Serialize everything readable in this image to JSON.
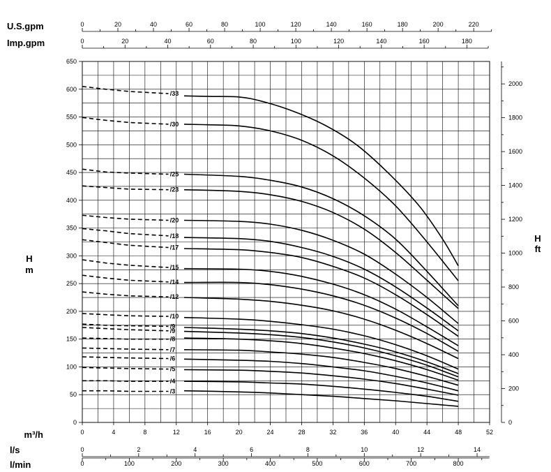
{
  "chart_data": {
    "type": "line",
    "title": "",
    "x_primary": {
      "label": "m³/h",
      "min": 0,
      "max": 52,
      "ticks": [
        0,
        4,
        8,
        12,
        16,
        20,
        24,
        28,
        32,
        36,
        40,
        44,
        48,
        52
      ]
    },
    "y_primary": {
      "label_top": "H",
      "label_bottom": "m",
      "min": 0,
      "max": 650,
      "ticks": [
        0,
        50,
        100,
        150,
        200,
        250,
        300,
        350,
        400,
        450,
        500,
        550,
        600,
        650
      ]
    },
    "y_secondary": {
      "label_top": "H",
      "label_bottom": "ft",
      "max": 2132.5,
      "ticks": [
        0,
        200,
        400,
        600,
        800,
        1000,
        1200,
        1400,
        1600,
        1800,
        2000
      ]
    },
    "secondary_x_axes": {
      "usgpm": {
        "label": "U.S.gpm",
        "per_m3h": 4.4029,
        "ticks": [
          0,
          20,
          40,
          60,
          80,
          100,
          120,
          140,
          160,
          180,
          200,
          220
        ]
      },
      "impgpm": {
        "label": "Imp.gpm",
        "per_m3h": 3.6662,
        "ticks": [
          0,
          20,
          40,
          60,
          80,
          100,
          120,
          140,
          160,
          180
        ]
      },
      "ls": {
        "label": "l/s",
        "per_m3h": 0.27778,
        "ticks": [
          0,
          2,
          4,
          6,
          8,
          10,
          12,
          14
        ]
      },
      "lmin": {
        "label": "l/min",
        "per_m3h": 16.6667,
        "ticks": [
          0,
          100,
          200,
          300,
          400,
          500,
          600,
          700,
          800
        ]
      }
    },
    "dashed_range": [
      0,
      11
    ],
    "series": [
      {
        "name": "/33",
        "dashed": [
          [
            0,
            605
          ],
          [
            3,
            600
          ],
          [
            6,
            596
          ],
          [
            11,
            592
          ]
        ],
        "solid": [
          [
            13,
            588
          ],
          [
            16,
            587
          ],
          [
            20,
            586
          ],
          [
            23,
            578
          ],
          [
            27,
            560
          ],
          [
            31,
            535
          ],
          [
            35,
            500
          ],
          [
            39,
            450
          ],
          [
            43,
            390
          ],
          [
            46,
            330
          ],
          [
            48,
            282
          ]
        ]
      },
      {
        "name": "/30",
        "dashed": [
          [
            0,
            549
          ],
          [
            3,
            544
          ],
          [
            6,
            540
          ],
          [
            11,
            537
          ]
        ],
        "solid": [
          [
            13,
            537
          ],
          [
            16,
            536
          ],
          [
            20,
            534
          ],
          [
            24,
            525
          ],
          [
            28,
            508
          ],
          [
            32,
            480
          ],
          [
            36,
            440
          ],
          [
            40,
            390
          ],
          [
            44,
            325
          ],
          [
            48,
            255
          ]
        ]
      },
      {
        "name": "/25",
        "dashed": [
          [
            0,
            456
          ],
          [
            3,
            451
          ],
          [
            6,
            449
          ],
          [
            11,
            447
          ]
        ],
        "solid": [
          [
            13,
            447
          ],
          [
            20,
            443
          ],
          [
            24,
            436
          ],
          [
            28,
            424
          ],
          [
            32,
            403
          ],
          [
            36,
            372
          ],
          [
            40,
            330
          ],
          [
            44,
            272
          ],
          [
            48,
            210
          ]
        ]
      },
      {
        "name": "/23",
        "dashed": [
          [
            0,
            426
          ],
          [
            3,
            423
          ],
          [
            6,
            420
          ],
          [
            11,
            419
          ]
        ],
        "solid": [
          [
            13,
            419
          ],
          [
            20,
            416
          ],
          [
            24,
            410
          ],
          [
            28,
            398
          ],
          [
            32,
            378
          ],
          [
            36,
            348
          ],
          [
            40,
            306
          ],
          [
            44,
            256
          ],
          [
            48,
            205
          ]
        ]
      },
      {
        "name": "/20",
        "dashed": [
          [
            0,
            373
          ],
          [
            3,
            369
          ],
          [
            6,
            366
          ],
          [
            11,
            364
          ]
        ],
        "solid": [
          [
            13,
            364
          ],
          [
            20,
            362
          ],
          [
            24,
            357
          ],
          [
            28,
            346
          ],
          [
            32,
            328
          ],
          [
            36,
            303
          ],
          [
            40,
            267
          ],
          [
            44,
            225
          ],
          [
            48,
            178
          ]
        ]
      },
      {
        "name": "/18",
        "dashed": [
          [
            0,
            349
          ],
          [
            3,
            345
          ],
          [
            6,
            340
          ],
          [
            11,
            336
          ]
        ],
        "solid": [
          [
            13,
            333
          ],
          [
            20,
            331
          ],
          [
            24,
            326
          ],
          [
            28,
            315
          ],
          [
            32,
            299
          ],
          [
            36,
            276
          ],
          [
            40,
            244
          ],
          [
            44,
            206
          ],
          [
            48,
            165
          ]
        ]
      },
      {
        "name": "/17",
        "dashed": [
          [
            0,
            329
          ],
          [
            3,
            324
          ],
          [
            6,
            319
          ],
          [
            11,
            315
          ]
        ],
        "solid": [
          [
            13,
            313
          ],
          [
            20,
            311
          ],
          [
            24,
            306
          ],
          [
            28,
            297
          ],
          [
            32,
            281
          ],
          [
            36,
            260
          ],
          [
            40,
            230
          ],
          [
            44,
            194
          ],
          [
            48,
            155
          ]
        ]
      },
      {
        "name": "/15",
        "dashed": [
          [
            0,
            293
          ],
          [
            3,
            287
          ],
          [
            6,
            283
          ],
          [
            11,
            279
          ]
        ],
        "solid": [
          [
            13,
            277
          ],
          [
            20,
            276
          ],
          [
            24,
            272
          ],
          [
            28,
            263
          ],
          [
            32,
            249
          ],
          [
            36,
            230
          ],
          [
            40,
            204
          ],
          [
            44,
            172
          ],
          [
            48,
            138
          ]
        ]
      },
      {
        "name": "/14",
        "dashed": [
          [
            0,
            265
          ],
          [
            3,
            260
          ],
          [
            6,
            256
          ],
          [
            11,
            253
          ]
        ],
        "solid": [
          [
            13,
            252
          ],
          [
            20,
            252
          ],
          [
            24,
            248
          ],
          [
            28,
            240
          ],
          [
            32,
            228
          ],
          [
            36,
            211
          ],
          [
            40,
            188
          ],
          [
            44,
            160
          ],
          [
            48,
            128
          ]
        ]
      },
      {
        "name": "/12",
        "dashed": [
          [
            0,
            235
          ],
          [
            3,
            231
          ],
          [
            6,
            228
          ],
          [
            11,
            226
          ]
        ],
        "solid": [
          [
            13,
            225
          ],
          [
            20,
            222
          ],
          [
            24,
            218
          ],
          [
            28,
            211
          ],
          [
            32,
            201
          ],
          [
            36,
            186
          ],
          [
            40,
            166
          ],
          [
            44,
            142
          ],
          [
            48,
            115
          ]
        ]
      },
      {
        "name": "/10",
        "dashed": [
          [
            0,
            196
          ],
          [
            3,
            194
          ],
          [
            6,
            192
          ],
          [
            11,
            191
          ]
        ],
        "solid": [
          [
            13,
            189
          ],
          [
            20,
            186
          ],
          [
            24,
            182
          ],
          [
            28,
            176
          ],
          [
            32,
            168
          ],
          [
            36,
            156
          ],
          [
            40,
            140
          ],
          [
            44,
            120
          ],
          [
            48,
            96
          ]
        ]
      },
      {
        "name": "/9",
        "dashed": [
          [
            0,
            177
          ],
          [
            3,
            175
          ],
          [
            6,
            174
          ],
          [
            11,
            173
          ]
        ],
        "solid": [
          [
            13,
            171
          ],
          [
            20,
            168
          ],
          [
            24,
            165
          ],
          [
            28,
            160
          ],
          [
            32,
            152
          ],
          [
            36,
            141
          ],
          [
            40,
            127
          ],
          [
            44,
            109
          ],
          [
            48,
            88
          ]
        ]
      },
      {
        "name": "/9",
        "dashed": [
          [
            0,
            171
          ],
          [
            3,
            169
          ],
          [
            6,
            167
          ],
          [
            11,
            165
          ]
        ],
        "solid": [
          [
            13,
            164
          ],
          [
            20,
            161
          ],
          [
            24,
            158
          ],
          [
            28,
            153
          ],
          [
            32,
            145
          ],
          [
            36,
            134
          ],
          [
            40,
            120
          ],
          [
            44,
            103
          ],
          [
            48,
            82
          ]
        ]
      },
      {
        "name": "/8",
        "dashed": [
          [
            0,
            152
          ],
          [
            3,
            151
          ],
          [
            6,
            150
          ],
          [
            11,
            150
          ]
        ],
        "solid": [
          [
            13,
            152
          ],
          [
            20,
            150
          ],
          [
            24,
            147
          ],
          [
            28,
            142
          ],
          [
            32,
            134
          ],
          [
            36,
            124
          ],
          [
            40,
            111
          ],
          [
            44,
            95
          ],
          [
            48,
            76
          ]
        ]
      },
      {
        "name": "/7",
        "dashed": [
          [
            0,
            134
          ],
          [
            3,
            133
          ],
          [
            6,
            132
          ],
          [
            11,
            131
          ]
        ],
        "solid": [
          [
            13,
            131
          ],
          [
            20,
            130
          ],
          [
            24,
            127
          ],
          [
            28,
            123
          ],
          [
            32,
            117
          ],
          [
            36,
            108
          ],
          [
            40,
            97
          ],
          [
            44,
            83
          ],
          [
            48,
            67
          ]
        ]
      },
      {
        "name": "/6",
        "dashed": [
          [
            0,
            118
          ],
          [
            3,
            117
          ],
          [
            6,
            116
          ],
          [
            11,
            115
          ]
        ],
        "solid": [
          [
            13,
            114
          ],
          [
            20,
            112
          ],
          [
            24,
            110
          ],
          [
            28,
            106
          ],
          [
            32,
            100
          ],
          [
            36,
            93
          ],
          [
            40,
            83
          ],
          [
            44,
            71
          ],
          [
            48,
            57
          ]
        ]
      },
      {
        "name": "/5",
        "dashed": [
          [
            0,
            99
          ],
          [
            3,
            98
          ],
          [
            6,
            97
          ],
          [
            11,
            96
          ]
        ],
        "solid": [
          [
            13,
            95
          ],
          [
            20,
            94
          ],
          [
            24,
            92
          ],
          [
            28,
            89
          ],
          [
            32,
            84
          ],
          [
            36,
            78
          ],
          [
            40,
            70
          ],
          [
            44,
            60
          ],
          [
            48,
            49
          ]
        ]
      },
      {
        "name": "/4",
        "dashed": [
          [
            0,
            75
          ],
          [
            3,
            75
          ],
          [
            6,
            74
          ],
          [
            11,
            74
          ]
        ],
        "solid": [
          [
            13,
            74
          ],
          [
            20,
            73
          ],
          [
            24,
            71
          ],
          [
            28,
            69
          ],
          [
            32,
            65
          ],
          [
            36,
            60
          ],
          [
            40,
            54
          ],
          [
            44,
            47
          ],
          [
            48,
            38
          ]
        ]
      },
      {
        "name": "/3",
        "dashed": [
          [
            0,
            57
          ],
          [
            3,
            57
          ],
          [
            6,
            56
          ],
          [
            11,
            56
          ]
        ],
        "solid": [
          [
            13,
            57
          ],
          [
            20,
            55
          ],
          [
            24,
            53
          ],
          [
            28,
            50
          ],
          [
            32,
            47
          ],
          [
            36,
            43
          ],
          [
            40,
            39
          ],
          [
            44,
            34
          ],
          [
            48,
            29
          ]
        ]
      }
    ]
  }
}
